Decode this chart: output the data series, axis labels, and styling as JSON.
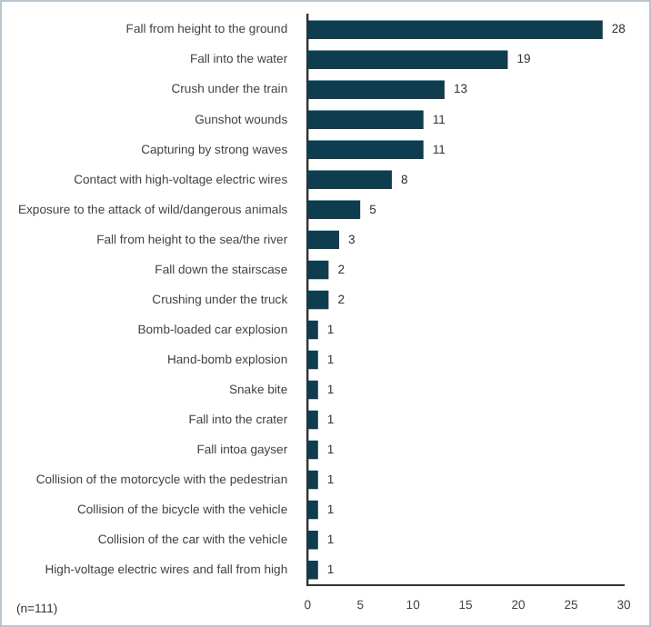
{
  "chart_data": {
    "type": "bar",
    "orientation": "horizontal",
    "categories": [
      "Fall from height to the ground",
      "Fall into the water",
      "Crush under the train",
      "Gunshot wounds",
      "Capturing by strong waves",
      "Contact with high-voltage electric wires",
      "Exposure to the attack of wild/dangerous animals",
      "Fall from height to the sea/the river",
      "Fall down the stairscase",
      "Crushing under the truck",
      "Bomb-loaded car explosion",
      "Hand-bomb explosion",
      "Snake bite",
      "Fall into the crater",
      "Fall intoa gayser",
      "Collision of the motorcycle with the pedestrian",
      "Collision of the bicycle with the vehicle",
      "Collision of the car with the vehicle",
      "High-voltage electric wires and fall from high"
    ],
    "values": [
      28,
      19,
      13,
      11,
      11,
      8,
      5,
      3,
      2,
      2,
      1,
      1,
      1,
      1,
      1,
      1,
      1,
      1,
      1
    ],
    "color": "#0e3d4f",
    "xlim": [
      0,
      30
    ],
    "xticks": [
      0,
      5,
      10,
      15,
      20,
      25,
      30
    ],
    "data_labels": true,
    "grid": false,
    "legend": false,
    "annotations": [
      "(n=111)"
    ]
  }
}
